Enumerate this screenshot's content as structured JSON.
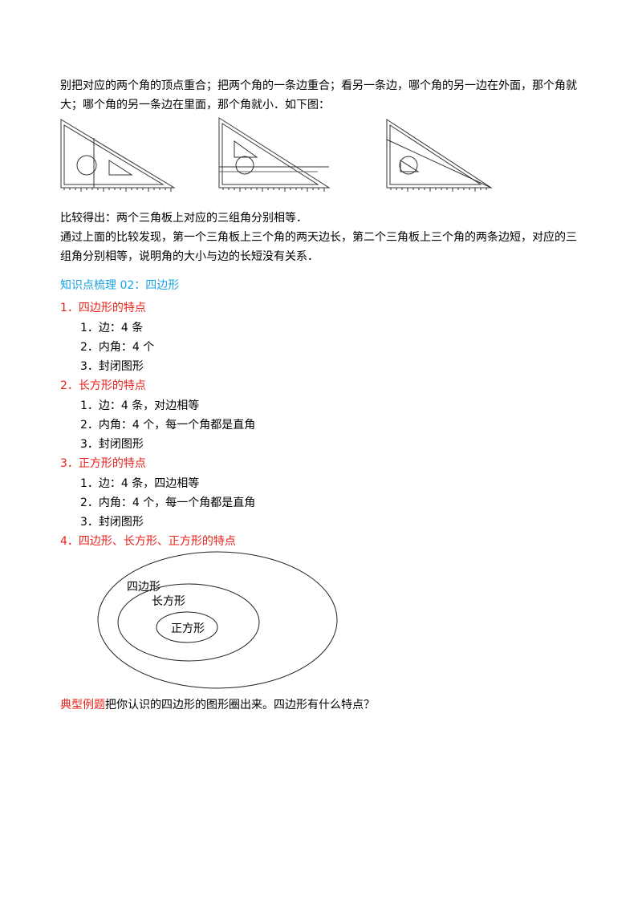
{
  "intro": {
    "line1": "别把对应的两个角的顶点重合；把两个角的一条边重合；看另一条边，哪个角的另一边在外面，那个角就",
    "line2": "大；哪个角的另一条边在里面，那个角就小．如下图："
  },
  "conclusion": {
    "line1": "比较得出：两个三角板上对应的三组角分别相等．",
    "line2": "通过上面的比较发现，第一个三角板上三个角的两天边长，第二个三角板上三个角的两条边短，对应的三",
    "line3": "组角分别相等，说明角的大小与边的长短没有关系．"
  },
  "section_title": "知识点梳理 02：四边形",
  "sections": [
    {
      "heading": "1．四边形的特点",
      "items": [
        "1．边：4 条",
        "2．内角：4 个",
        "3．封闭图形"
      ]
    },
    {
      "heading": "2．长方形的特点",
      "items": [
        "1．边：4 条，对边相等",
        "2．内角：4 个，每一个角都是直角",
        "3．封闭图形"
      ]
    },
    {
      "heading": "3．正方形的特点",
      "items": [
        "1．边：4 条，四边相等",
        "2．内角：4 个，每一个角都是直角",
        "3．封闭图形"
      ]
    },
    {
      "heading": "4．四边形、长方形、正方形的特点",
      "items": []
    }
  ],
  "diagram": {
    "outer_label": "四边形",
    "middle_label": "长方形",
    "inner_label": "正方形"
  },
  "example": {
    "tag": "典型例题",
    "text": "把你认识的四边形的图形圈出来。四边形有什么特点？"
  },
  "colors": {
    "heading_red": "#e8211b",
    "title_cyan": "#1aa3e0"
  }
}
